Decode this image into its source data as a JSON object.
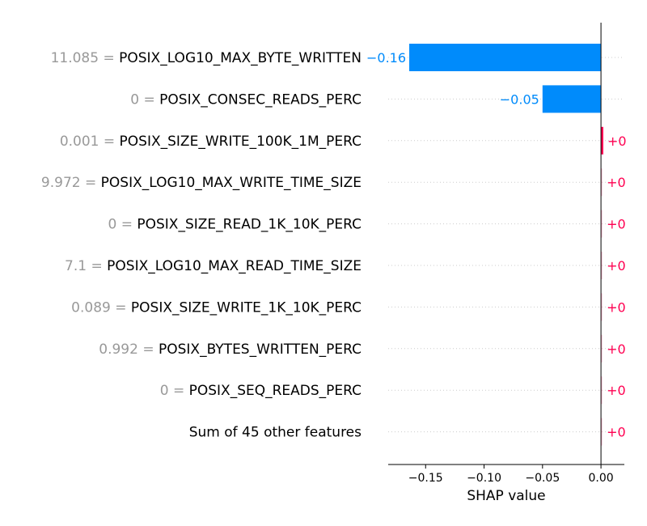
{
  "chart_data": {
    "type": "bar",
    "subtype": "shap-waterfall-horizontal",
    "xlabel": "SHAP value",
    "xlim": [
      -0.182,
      0.02
    ],
    "xticks": [
      -0.15,
      -0.1,
      -0.05,
      0.0
    ],
    "xtick_labels": [
      "−0.15",
      "−0.10",
      "−0.05",
      "0.00"
    ],
    "grid": "horizontal dotted per row",
    "colors": {
      "negative": "#008bfb",
      "positive": "#ff0051",
      "feature_value": "#999999",
      "grid": "#cccccc"
    },
    "rows": [
      {
        "feature_value": "11.085",
        "feature": "POSIX_LOG10_MAX_BYTE_WRITTEN",
        "value": -0.164,
        "label": "−0.16",
        "label_side": "outside"
      },
      {
        "feature_value": "0",
        "feature": "POSIX_CONSEC_READS_PERC",
        "value": -0.05,
        "label": "−0.05",
        "label_side": "outside"
      },
      {
        "feature_value": "0.001",
        "feature": "POSIX_SIZE_WRITE_100K_1M_PERC",
        "value": 0.002,
        "label": "+0",
        "label_side": "outside"
      },
      {
        "feature_value": "9.972",
        "feature": "POSIX_LOG10_MAX_WRITE_TIME_SIZE",
        "value": 0.0003,
        "label": "+0",
        "label_side": "outside"
      },
      {
        "feature_value": "0",
        "feature": "POSIX_SIZE_READ_1K_10K_PERC",
        "value": 0.0003,
        "label": "+0",
        "label_side": "outside"
      },
      {
        "feature_value": "7.1",
        "feature": "POSIX_LOG10_MAX_READ_TIME_SIZE",
        "value": 0.0003,
        "label": "+0",
        "label_side": "outside"
      },
      {
        "feature_value": "0.089",
        "feature": "POSIX_SIZE_WRITE_1K_10K_PERC",
        "value": 0.0003,
        "label": "+0",
        "label_side": "outside"
      },
      {
        "feature_value": "0.992",
        "feature": "POSIX_BYTES_WRITTEN_PERC",
        "value": 0.0003,
        "label": "+0",
        "label_side": "outside"
      },
      {
        "feature_value": "0",
        "feature": "POSIX_SEQ_READS_PERC",
        "value": 0.0003,
        "label": "+0",
        "label_side": "outside"
      },
      {
        "feature_value": "",
        "feature": "Sum of 45 other features",
        "value": 0.0003,
        "label": "+0",
        "label_side": "outside"
      }
    ]
  }
}
